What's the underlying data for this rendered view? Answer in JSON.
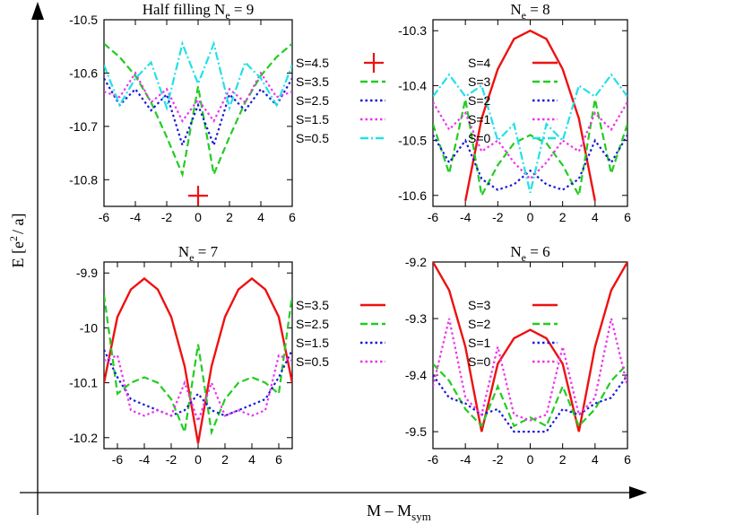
{
  "figure": {
    "xlabel_main": "M – M",
    "xlabel_sub": "sym",
    "ylabel_main": "E [e",
    "ylabel_sup": "2",
    "ylabel_tail": "/ a]"
  },
  "colors": {
    "red": "#ee1111",
    "green": "#22cc22",
    "blue": "#1a1ad6",
    "magenta": "#ee33ee",
    "cyan": "#22e0e8"
  },
  "chart_data": [
    {
      "type": "line",
      "title_pre": "Half filling N",
      "title_sub": "e",
      "title_post": " = 9",
      "xlim": [
        -6,
        6
      ],
      "ylim": [
        -10.85,
        -10.5
      ],
      "xticks": [
        "-6",
        "-4",
        "-2",
        "0",
        "2",
        "4",
        "6"
      ],
      "yticks": [
        "-10.5",
        "-10.6",
        "-10.7",
        "-10.8"
      ],
      "series": [
        {
          "name": "S=4.5",
          "color": "red",
          "style": "point",
          "x": [
            0
          ],
          "y": [
            -10.83
          ]
        },
        {
          "name": "S=3.5",
          "color": "green",
          "style": "dash",
          "x": [
            -6,
            -5,
            -4,
            -3,
            -2,
            -1,
            0,
            1,
            2,
            3,
            4,
            5,
            6
          ],
          "y": [
            -10.545,
            -10.57,
            -10.605,
            -10.655,
            -10.72,
            -10.79,
            -10.625,
            -10.79,
            -10.72,
            -10.655,
            -10.605,
            -10.57,
            -10.545
          ]
        },
        {
          "name": "S=2.5",
          "color": "blue",
          "style": "dot",
          "x": [
            -6,
            -5,
            -4,
            -3,
            -2,
            -1,
            0,
            1,
            2,
            3,
            4,
            5,
            6
          ],
          "y": [
            -10.61,
            -10.66,
            -10.63,
            -10.67,
            -10.64,
            -10.735,
            -10.66,
            -10.735,
            -10.64,
            -10.67,
            -10.63,
            -10.66,
            -10.61
          ]
        },
        {
          "name": "S=1.5",
          "color": "magenta",
          "style": "dot",
          "x": [
            -6,
            -5,
            -4,
            -3,
            -2,
            -1,
            0,
            1,
            2,
            3,
            4,
            5,
            6
          ],
          "y": [
            -10.635,
            -10.645,
            -10.6,
            -10.655,
            -10.63,
            -10.69,
            -10.65,
            -10.69,
            -10.63,
            -10.655,
            -10.6,
            -10.645,
            -10.635
          ]
        },
        {
          "name": "S=0.5",
          "color": "cyan",
          "style": "dashdot",
          "x": [
            -6,
            -5,
            -4,
            -3,
            -2,
            -1,
            0,
            1,
            2,
            3,
            4,
            5,
            6
          ],
          "y": [
            -10.585,
            -10.66,
            -10.61,
            -10.58,
            -10.665,
            -10.545,
            -10.62,
            -10.545,
            -10.665,
            -10.58,
            -10.61,
            -10.66,
            -10.585
          ]
        }
      ]
    },
    {
      "type": "line",
      "title_pre": "N",
      "title_sub": "e",
      "title_post": " = 8",
      "xlim": [
        -6,
        6
      ],
      "ylim": [
        -10.62,
        -10.28
      ],
      "xticks": [
        "-6",
        "-4",
        "-2",
        "0",
        "2",
        "4",
        "6"
      ],
      "yticks": [
        "-10.3",
        "-10.4",
        "-10.5",
        "-10.6"
      ],
      "series": [
        {
          "name": "S=4",
          "color": "red",
          "style": "solid",
          "x": [
            -4,
            -3,
            -2,
            -1,
            0,
            1,
            2,
            3,
            4
          ],
          "y": [
            -10.61,
            -10.46,
            -10.37,
            -10.315,
            -10.3,
            -10.315,
            -10.37,
            -10.46,
            -10.61
          ]
        },
        {
          "name": "S=3",
          "color": "green",
          "style": "dash",
          "x": [
            -6,
            -5,
            -4,
            -3,
            -2,
            -1,
            0,
            1,
            2,
            3,
            4,
            5,
            6
          ],
          "y": [
            -10.47,
            -10.56,
            -10.425,
            -10.6,
            -10.545,
            -10.505,
            -10.49,
            -10.505,
            -10.545,
            -10.6,
            -10.425,
            -10.56,
            -10.47
          ]
        },
        {
          "name": "S=2",
          "color": "blue",
          "style": "dot",
          "x": [
            -6,
            -5,
            -4,
            -3,
            -2,
            -1,
            0,
            1,
            2,
            3,
            4,
            5,
            6
          ],
          "y": [
            -10.49,
            -10.54,
            -10.5,
            -10.57,
            -10.59,
            -10.58,
            -10.555,
            -10.58,
            -10.59,
            -10.57,
            -10.5,
            -10.54,
            -10.49
          ]
        },
        {
          "name": "S=1",
          "color": "magenta",
          "style": "dot",
          "x": [
            -6,
            -5,
            -4,
            -3,
            -2,
            -1,
            0,
            1,
            2,
            3,
            4,
            5,
            6
          ],
          "y": [
            -10.43,
            -10.48,
            -10.45,
            -10.52,
            -10.5,
            -10.54,
            -10.57,
            -10.54,
            -10.5,
            -10.52,
            -10.45,
            -10.48,
            -10.43
          ]
        },
        {
          "name": "S=0",
          "color": "cyan",
          "style": "dashdot",
          "x": [
            -6,
            -5,
            -4,
            -3,
            -2,
            -1,
            0,
            1,
            2,
            3,
            4,
            5,
            6
          ],
          "y": [
            -10.42,
            -10.38,
            -10.42,
            -10.4,
            -10.5,
            -10.47,
            -10.595,
            -10.47,
            -10.5,
            -10.4,
            -10.42,
            -10.38,
            -10.42
          ]
        }
      ]
    },
    {
      "type": "line",
      "title_pre": "N",
      "title_sub": "e",
      "title_post": " = 7",
      "xlim": [
        -7,
        7
      ],
      "ylim": [
        -10.22,
        -9.88
      ],
      "xticks": [
        "-6",
        "-4",
        "-2",
        "0",
        "2",
        "4",
        "6"
      ],
      "yticks": [
        "-9.9",
        "-10",
        "-10.1",
        "-10.2"
      ],
      "series": [
        {
          "name": "S=3.5",
          "color": "red",
          "style": "solid",
          "x": [
            -7,
            -6,
            -5,
            -4,
            -3,
            -2,
            -1,
            0,
            1,
            2,
            3,
            4,
            5,
            6,
            7
          ],
          "y": [
            -10.1,
            -9.98,
            -9.93,
            -9.91,
            -9.93,
            -9.98,
            -10.07,
            -10.21,
            -10.07,
            -9.98,
            -9.93,
            -9.91,
            -9.93,
            -9.98,
            -10.1
          ]
        },
        {
          "name": "S=2.5",
          "color": "green",
          "style": "dash",
          "x": [
            -7,
            -6,
            -5,
            -4,
            -3,
            -2,
            -1,
            0,
            1,
            2,
            3,
            4,
            5,
            6,
            7
          ],
          "y": [
            -9.94,
            -10.12,
            -10.1,
            -10.09,
            -10.1,
            -10.13,
            -10.19,
            -10.03,
            -10.19,
            -10.13,
            -10.1,
            -10.09,
            -10.1,
            -10.12,
            -9.94
          ]
        },
        {
          "name": "S=1.5",
          "color": "blue",
          "style": "dot",
          "x": [
            -7,
            -6,
            -5,
            -4,
            -3,
            -2,
            -1,
            0,
            1,
            2,
            3,
            4,
            5,
            6,
            7
          ],
          "y": [
            -10.04,
            -10.09,
            -10.13,
            -10.14,
            -10.15,
            -10.16,
            -10.15,
            -10.12,
            -10.15,
            -10.16,
            -10.15,
            -10.14,
            -10.13,
            -10.09,
            -10.04
          ]
        },
        {
          "name": "S=0.5",
          "color": "magenta",
          "style": "dot",
          "x": [
            -7,
            -6,
            -5,
            -4,
            -3,
            -2,
            -1,
            0,
            1,
            2,
            3,
            4,
            5,
            6,
            7
          ],
          "y": [
            -10.06,
            -10.05,
            -10.15,
            -10.16,
            -10.15,
            -10.16,
            -10.1,
            -10.17,
            -10.1,
            -10.16,
            -10.15,
            -10.16,
            -10.15,
            -10.05,
            -10.06
          ]
        }
      ]
    },
    {
      "type": "line",
      "title_pre": "N",
      "title_sub": "e",
      "title_post": " = 6",
      "xlim": [
        -6,
        6
      ],
      "ylim": [
        -9.53,
        -9.2
      ],
      "xticks": [
        "-6",
        "-4",
        "-2",
        "0",
        "2",
        "4",
        "6"
      ],
      "yticks": [
        "-9.2",
        "-9.3",
        "-9.4",
        "-9.5"
      ],
      "series": [
        {
          "name": "S=3",
          "color": "red",
          "style": "solid",
          "x": [
            -6,
            -5,
            -4,
            -3,
            -2,
            -1,
            0,
            1,
            2,
            3,
            4,
            5,
            6
          ],
          "y": [
            -9.2,
            -9.25,
            -9.35,
            -9.5,
            -9.38,
            -9.335,
            -9.32,
            -9.335,
            -9.38,
            -9.5,
            -9.35,
            -9.25,
            -9.2
          ]
        },
        {
          "name": "S=2",
          "color": "green",
          "style": "dash",
          "x": [
            -6,
            -5,
            -4,
            -3,
            -2,
            -1,
            0,
            1,
            2,
            3,
            4,
            5,
            6
          ],
          "y": [
            -9.38,
            -9.41,
            -9.46,
            -9.49,
            -9.42,
            -9.49,
            -9.475,
            -9.49,
            -9.42,
            -9.49,
            -9.46,
            -9.41,
            -9.38
          ]
        },
        {
          "name": "S=1",
          "color": "blue",
          "style": "dot",
          "x": [
            -6,
            -5,
            -4,
            -3,
            -2,
            -1,
            0,
            1,
            2,
            3,
            4,
            5,
            6
          ],
          "y": [
            -9.4,
            -9.44,
            -9.45,
            -9.47,
            -9.46,
            -9.5,
            -9.5,
            -9.5,
            -9.46,
            -9.47,
            -9.45,
            -9.44,
            -9.4
          ]
        },
        {
          "name": "S=0",
          "color": "magenta",
          "style": "dot",
          "x": [
            -6,
            -5,
            -4,
            -3,
            -2,
            -1,
            0,
            1,
            2,
            3,
            4,
            5,
            6
          ],
          "y": [
            -9.42,
            -9.3,
            -9.44,
            -9.47,
            -9.35,
            -9.47,
            -9.48,
            -9.47,
            -9.35,
            -9.47,
            -9.44,
            -9.3,
            -9.42
          ]
        }
      ]
    }
  ]
}
